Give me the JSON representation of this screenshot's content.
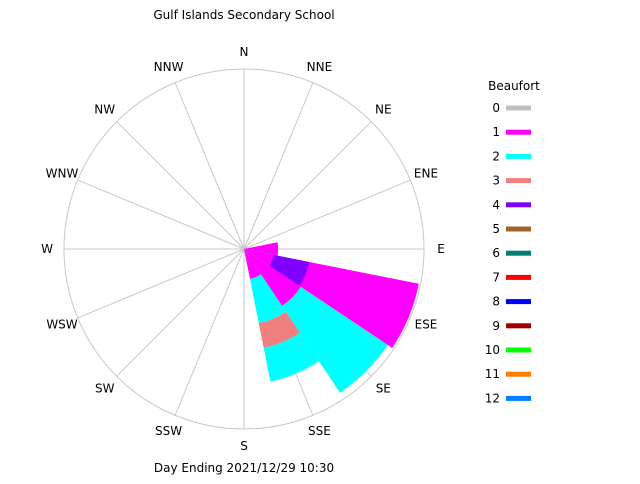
{
  "chart_data": {
    "type": "wind-rose",
    "title": "Gulf Islands Secondary School",
    "footer": "Day Ending 2021/12/29 10:30",
    "directions": [
      "N",
      "NNE",
      "NE",
      "ENE",
      "E",
      "ESE",
      "SE",
      "SSE",
      "S",
      "SSW",
      "SW",
      "WSW",
      "W",
      "WNW",
      "NW",
      "NNW"
    ],
    "radius_max": 1.0,
    "grid": true,
    "legend": {
      "title": "Beaufort",
      "placement": "right",
      "levels": [
        {
          "label": "0",
          "color": "#c0c0c0"
        },
        {
          "label": "1",
          "color": "#ff00ff"
        },
        {
          "label": "2",
          "color": "#00ffff"
        },
        {
          "label": "3",
          "color": "#f08080"
        },
        {
          "label": "4",
          "color": "#8000ff"
        },
        {
          "label": "5",
          "color": "#a0642a"
        },
        {
          "label": "6",
          "color": "#008070"
        },
        {
          "label": "7",
          "color": "#ff0000"
        },
        {
          "label": "8",
          "color": "#0000ff"
        },
        {
          "label": "9",
          "color": "#a00000"
        },
        {
          "label": "10",
          "color": "#00ff00"
        },
        {
          "label": "11",
          "color": "#ff8000"
        },
        {
          "label": "12",
          "color": "#0080ff"
        }
      ]
    },
    "segments": [
      {
        "direction": "E",
        "beaufort": "1",
        "from": 0.0,
        "to": 0.19
      },
      {
        "direction": "ESE",
        "beaufort": "1",
        "from": 0.0,
        "to": 0.99
      },
      {
        "direction": "ESE",
        "beaufort": "4",
        "from": 0.17,
        "to": 0.37
      },
      {
        "direction": "SE",
        "beaufort": "1",
        "from": 0.0,
        "to": 0.38
      },
      {
        "direction": "SE",
        "beaufort": "2",
        "from": 0.38,
        "to": 0.96
      },
      {
        "direction": "SSE",
        "beaufort": "1",
        "from": 0.0,
        "to": 0.17
      },
      {
        "direction": "SSE",
        "beaufort": "2",
        "from": 0.17,
        "to": 0.42
      },
      {
        "direction": "SSE",
        "beaufort": "3",
        "from": 0.42,
        "to": 0.56
      },
      {
        "direction": "SSE",
        "beaufort": "2",
        "from": 0.56,
        "to": 0.75
      }
    ]
  }
}
